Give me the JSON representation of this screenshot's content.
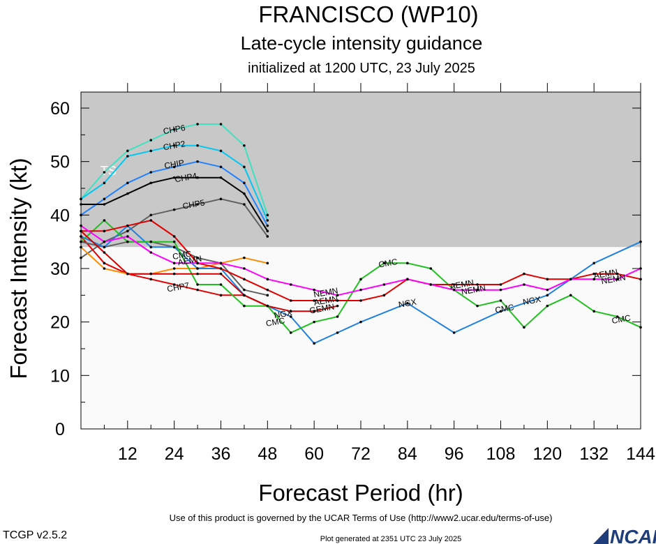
{
  "header": {
    "title": "FRANCISCO (WP10)",
    "subtitle": "Late-cycle intensity guidance",
    "initialized": "initialized at 1200 UTC, 23 July 2025"
  },
  "footer": {
    "terms": "Use of this product is governed by the UCAR Terms of Use (http://www2.ucar.edu/terms-of-use)",
    "generated": "Plot generated at 2351 UTC   23 July 2025",
    "version": "TCGP v2.5.2",
    "logo_text": "NCAR"
  },
  "colors": {
    "ts_band": "#c8c8c8",
    "below_band": "#fafafa",
    "logo": "#1f3d7a"
  },
  "chart_data": {
    "type": "line",
    "xlabel": "Forecast Period (hr)",
    "ylabel": "Forecast Intensity (kt)",
    "xlim": [
      0,
      144
    ],
    "ylim": [
      0,
      63
    ],
    "xticks": [
      12,
      24,
      36,
      48,
      60,
      72,
      84,
      96,
      108,
      120,
      132,
      144
    ],
    "yticks": [
      0,
      10,
      20,
      30,
      40,
      50,
      60
    ],
    "bands": [
      {
        "label": "TS",
        "from": 34,
        "to": 63,
        "color": "#c8c8c8"
      },
      {
        "label": "",
        "from": 0,
        "to": 34,
        "color": "#fafafa"
      }
    ],
    "series": [
      {
        "name": "CHP6",
        "color": "#40e0c0",
        "x": [
          0,
          6,
          12,
          18,
          24,
          30,
          36,
          42,
          48
        ],
        "y": [
          43,
          48,
          52,
          54,
          56,
          57,
          57,
          53,
          40
        ],
        "labels": [
          {
            "x": 24,
            "y": 56
          }
        ]
      },
      {
        "name": "CHP2",
        "color": "#00c8f0",
        "x": [
          0,
          6,
          12,
          18,
          24,
          30,
          36,
          42,
          48
        ],
        "y": [
          43,
          46,
          51,
          52,
          53,
          53,
          52,
          49,
          39
        ],
        "labels": [
          {
            "x": 24,
            "y": 53
          }
        ]
      },
      {
        "name": "CHIP",
        "color": "#2080ff",
        "x": [
          0,
          6,
          12,
          18,
          24,
          30,
          36,
          42,
          48
        ],
        "y": [
          40,
          43,
          46,
          48,
          49,
          50,
          49,
          46,
          38
        ],
        "labels": [
          {
            "x": 24,
            "y": 49.5
          }
        ]
      },
      {
        "name": "CHP4",
        "color": "#000000",
        "x": [
          0,
          6,
          12,
          18,
          24,
          30,
          36,
          42,
          48
        ],
        "y": [
          42,
          42,
          44,
          46,
          47,
          47,
          47,
          44,
          37
        ],
        "labels": [
          {
            "x": 27,
            "y": 47
          }
        ]
      },
      {
        "name": "CHP5",
        "color": "#606060",
        "x": [
          0,
          6,
          12,
          18,
          24,
          30,
          36,
          42,
          48
        ],
        "y": [
          32,
          35,
          37,
          40,
          41,
          42,
          43,
          42,
          36
        ],
        "labels": [
          {
            "x": 29,
            "y": 42
          }
        ]
      },
      {
        "name": "CHP7",
        "color": "#e00000",
        "x": [
          0,
          6,
          12,
          18,
          24,
          30,
          36,
          42,
          48
        ],
        "y": [
          36,
          31,
          29,
          28,
          27,
          26,
          25,
          25,
          23
        ],
        "labels": [
          {
            "x": 25,
            "y": 26.5
          }
        ]
      },
      {
        "name": "",
        "color": "#ff8c00",
        "x": [
          0,
          6,
          12,
          18,
          24,
          30,
          36,
          42,
          48
        ],
        "y": [
          34,
          30,
          29,
          29,
          30,
          30,
          31,
          32,
          31
        ],
        "labels": []
      },
      {
        "name": "",
        "color": "#606060",
        "x": [
          0,
          6,
          12,
          18,
          24,
          30,
          36,
          42,
          48
        ],
        "y": [
          35,
          34,
          35,
          35,
          34,
          32,
          31,
          26,
          25
        ],
        "labels": []
      },
      {
        "name": "NGX",
        "color": "#2080e0",
        "x": [
          0,
          6,
          12,
          18,
          24,
          30,
          36,
          42,
          48,
          54,
          60,
          66,
          72,
          84,
          96,
          108,
          120,
          132,
          144
        ],
        "y": [
          36,
          34,
          38,
          34,
          34,
          30,
          30,
          25,
          23,
          21,
          16,
          18,
          20,
          23.5,
          18,
          22,
          25,
          31,
          35
        ],
        "labels": [
          {
            "x": 52,
            "y": 21.5
          },
          {
            "x": 84,
            "y": 23.5
          },
          {
            "x": 116,
            "y": 24
          }
        ]
      },
      {
        "name": "CMC",
        "color": "#20c020",
        "x": [
          0,
          6,
          12,
          18,
          24,
          30,
          36,
          42,
          48,
          54,
          60,
          66,
          72,
          78,
          84,
          90,
          96,
          102,
          108,
          114,
          120,
          126,
          132,
          138,
          144
        ],
        "y": [
          35,
          39,
          35,
          35,
          35,
          27,
          27,
          23,
          23,
          18,
          20,
          21,
          28,
          31,
          31,
          30,
          26,
          23,
          24,
          19,
          23,
          25,
          22,
          21,
          19
        ],
        "labels": [
          {
            "x": 26,
            "y": 32.5
          },
          {
            "x": 50,
            "y": 20
          },
          {
            "x": 79,
            "y": 31
          },
          {
            "x": 109,
            "y": 22.5
          },
          {
            "x": 139,
            "y": 20.5
          }
        ]
      },
      {
        "name": "AEMN",
        "color": "#e00000",
        "x": [
          0,
          6,
          12,
          18,
          24,
          30,
          36,
          42,
          48,
          54,
          60,
          66,
          72,
          78,
          84,
          90,
          96,
          102,
          108,
          114,
          120,
          126,
          132,
          138,
          144
        ],
        "y": [
          37,
          37,
          38,
          39,
          36,
          31,
          30,
          28,
          26,
          24,
          24,
          24,
          24,
          25,
          28,
          27,
          27,
          27,
          27,
          29,
          28,
          28,
          29,
          29,
          28
        ],
        "labels": [
          {
            "x": 28,
            "y": 31.5
          },
          {
            "x": 63,
            "y": 24
          },
          {
            "x": 98,
            "y": 27
          },
          {
            "x": 135,
            "y": 29
          }
        ]
      },
      {
        "name": "NEMN",
        "color": "#ff00ff",
        "x": [
          0,
          6,
          12,
          18,
          24,
          30,
          36,
          42,
          48,
          54,
          60,
          66,
          72,
          78,
          84,
          90,
          96,
          102,
          108,
          114,
          120,
          126,
          132,
          138,
          144
        ],
        "y": [
          38,
          35,
          36,
          33,
          31,
          31,
          31,
          30,
          28,
          27,
          26,
          25,
          26,
          27,
          28,
          27,
          26,
          26,
          26,
          27,
          26,
          28,
          28,
          28,
          30
        ],
        "labels": [
          {
            "x": 63,
            "y": 25.5
          },
          {
            "x": 101,
            "y": 26
          },
          {
            "x": 137,
            "y": 28
          }
        ]
      },
      {
        "name": "GEMN",
        "color": "#d00000",
        "x": [
          0,
          6,
          12,
          18,
          24,
          30,
          36,
          42,
          48,
          54,
          60,
          66
        ],
        "y": [
          37,
          33,
          29,
          29,
          29,
          29,
          29,
          25,
          23,
          22,
          22,
          23
        ],
        "labels": [
          {
            "x": 62,
            "y": 22.5
          }
        ]
      }
    ]
  }
}
